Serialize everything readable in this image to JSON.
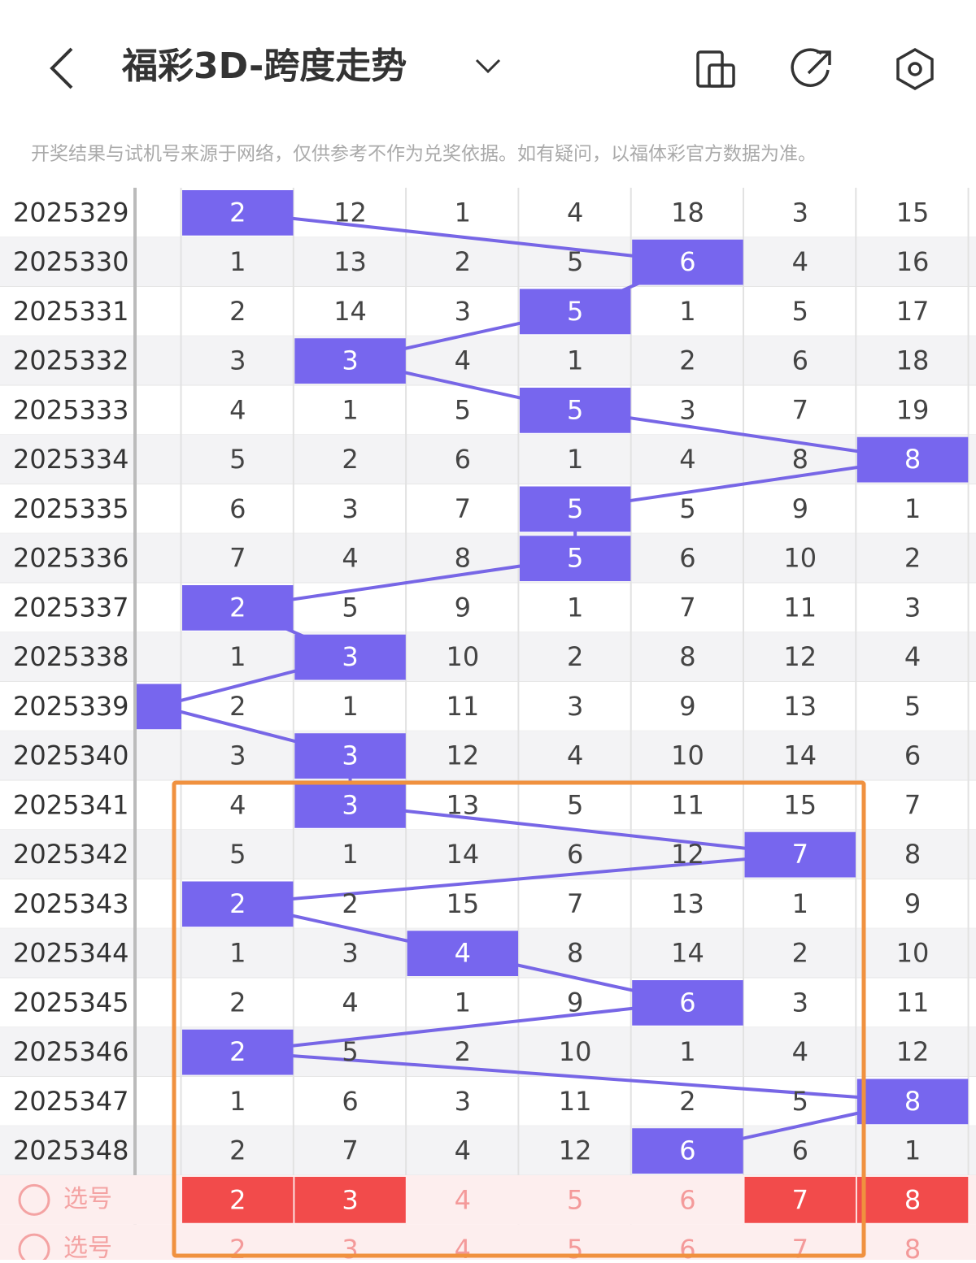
{
  "header": {
    "title": "福彩3D-跨度走势"
  },
  "notice": "开奖结果与试机号来源于网络，仅供参考不作为兑奖依据。如有疑问，以福体彩官方数据为准。",
  "rows": [
    {
      "issue": "2025329",
      "cells": [
        null,
        2,
        12,
        1,
        4,
        18,
        3,
        15
      ],
      "hit": 1
    },
    {
      "issue": "2025330",
      "cells": [
        null,
        1,
        13,
        2,
        5,
        6,
        4,
        16
      ],
      "hit": 5
    },
    {
      "issue": "2025331",
      "cells": [
        null,
        2,
        14,
        3,
        5,
        1,
        5,
        17
      ],
      "hit": 4
    },
    {
      "issue": "2025332",
      "cells": [
        null,
        3,
        3,
        4,
        1,
        2,
        6,
        18
      ],
      "hit": 2
    },
    {
      "issue": "2025333",
      "cells": [
        null,
        4,
        1,
        5,
        5,
        3,
        7,
        19
      ],
      "hit": 4
    },
    {
      "issue": "2025334",
      "cells": [
        null,
        5,
        2,
        6,
        1,
        4,
        8,
        8
      ],
      "hit": 7
    },
    {
      "issue": "2025335",
      "cells": [
        null,
        6,
        3,
        7,
        5,
        5,
        9,
        1
      ],
      "hit": 4
    },
    {
      "issue": "2025336",
      "cells": [
        null,
        7,
        4,
        8,
        5,
        6,
        10,
        2
      ],
      "hit": 4
    },
    {
      "issue": "2025337",
      "cells": [
        null,
        2,
        5,
        9,
        1,
        7,
        11,
        3
      ],
      "hit": 1
    },
    {
      "issue": "2025338",
      "cells": [
        null,
        1,
        3,
        10,
        2,
        8,
        12,
        4
      ],
      "hit": 2
    },
    {
      "issue": "2025339",
      "cells": [
        null,
        2,
        1,
        11,
        3,
        9,
        13,
        5
      ],
      "hit": 0
    },
    {
      "issue": "2025340",
      "cells": [
        null,
        3,
        3,
        12,
        4,
        10,
        14,
        6
      ],
      "hit": 2
    },
    {
      "issue": "2025341",
      "cells": [
        null,
        4,
        3,
        13,
        5,
        11,
        15,
        7
      ],
      "hit": 2
    },
    {
      "issue": "2025342",
      "cells": [
        null,
        5,
        1,
        14,
        6,
        12,
        7,
        8
      ],
      "hit": 6
    },
    {
      "issue": "2025343",
      "cells": [
        null,
        2,
        2,
        15,
        7,
        13,
        1,
        9
      ],
      "hit": 1
    },
    {
      "issue": "2025344",
      "cells": [
        null,
        1,
        3,
        4,
        8,
        14,
        2,
        10
      ],
      "hit": 3
    },
    {
      "issue": "2025345",
      "cells": [
        null,
        2,
        4,
        1,
        9,
        6,
        3,
        11
      ],
      "hit": 5
    },
    {
      "issue": "2025346",
      "cells": [
        null,
        2,
        5,
        2,
        10,
        1,
        4,
        12
      ],
      "hit": 1
    },
    {
      "issue": "2025347",
      "cells": [
        null,
        1,
        6,
        3,
        11,
        2,
        5,
        8
      ],
      "hit": 7
    },
    {
      "issue": "2025348",
      "cells": [
        null,
        2,
        7,
        4,
        12,
        6,
        6,
        1
      ],
      "hit": 5
    }
  ],
  "picks": [
    {
      "label": "选号",
      "numbers": [
        2,
        3,
        4,
        5,
        6,
        7,
        8
      ],
      "picked": [
        0,
        1,
        5,
        6
      ]
    },
    {
      "label": "选号",
      "numbers": [
        2,
        3,
        4,
        5,
        6,
        7,
        8
      ],
      "picked": []
    }
  ]
}
